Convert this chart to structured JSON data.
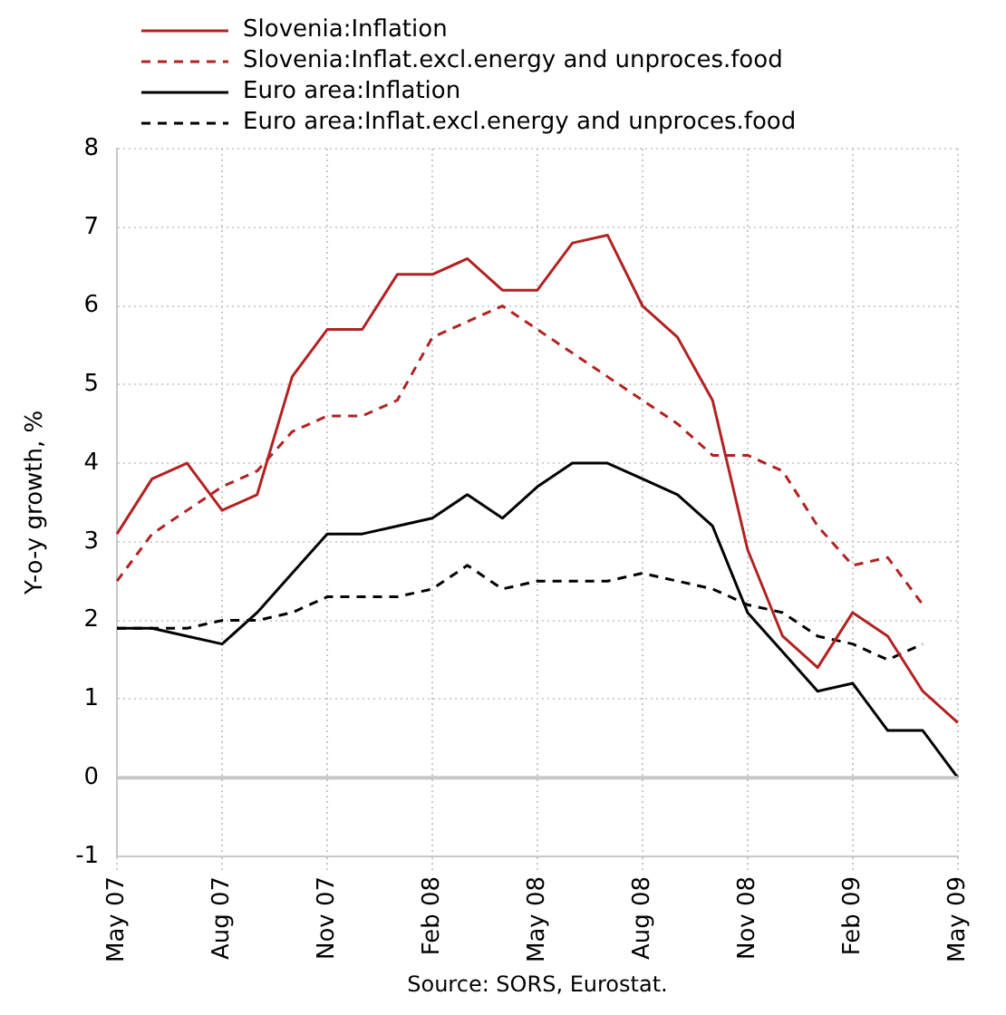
{
  "chart_data": {
    "type": "line",
    "ylabel": "Y-o-y growth, %",
    "categories": [
      "May 07",
      null,
      null,
      "Aug 07",
      null,
      null,
      "Nov 07",
      null,
      null,
      "Feb 08",
      null,
      null,
      "May 08",
      null,
      null,
      "Aug 08",
      null,
      null,
      "Nov 08",
      null,
      null,
      "Feb 09",
      null,
      null,
      "May 09"
    ],
    "series": [
      {
        "name": "Slovenia:Inflation",
        "color": "#b22222",
        "line_style": "solid",
        "values": [
          3.1,
          3.8,
          4.0,
          3.4,
          3.6,
          5.1,
          5.7,
          5.7,
          6.4,
          6.4,
          6.6,
          6.2,
          6.2,
          6.8,
          6.9,
          6.0,
          5.6,
          4.8,
          2.9,
          1.8,
          1.4,
          2.1,
          1.8,
          1.1,
          0.7
        ]
      },
      {
        "name": "Slovenia:Inflat.excl.energy and unproces.food",
        "color": "#b22222",
        "line_style": "dashed",
        "values": [
          2.5,
          3.1,
          3.4,
          3.7,
          3.9,
          4.4,
          4.6,
          4.6,
          4.8,
          5.6,
          5.8,
          6.0,
          5.7,
          5.4,
          5.1,
          4.8,
          4.5,
          4.1,
          4.1,
          3.9,
          3.2,
          2.7,
          2.8,
          2.2,
          null
        ]
      },
      {
        "name": "Euro area:Inflation",
        "color": "#000000",
        "line_style": "solid",
        "values": [
          1.9,
          1.9,
          1.8,
          1.7,
          2.1,
          2.6,
          3.1,
          3.1,
          3.2,
          3.3,
          3.6,
          3.3,
          3.7,
          4.0,
          4.0,
          3.8,
          3.6,
          3.2,
          2.1,
          1.6,
          1.1,
          1.2,
          0.6,
          0.6,
          0.0
        ]
      },
      {
        "name": "Euro area:Inflat.excl.energy and unproces.food",
        "color": "#000000",
        "line_style": "dashed",
        "values": [
          1.9,
          1.9,
          1.9,
          2.0,
          2.0,
          2.1,
          2.3,
          2.3,
          2.3,
          2.4,
          2.7,
          2.4,
          2.5,
          2.5,
          2.5,
          2.6,
          2.5,
          2.4,
          2.2,
          2.1,
          1.8,
          1.7,
          1.5,
          1.7,
          null
        ]
      }
    ],
    "ylim": [
      -1,
      8
    ],
    "yticks": [
      -1,
      0,
      1,
      2,
      3,
      4,
      5,
      6,
      7,
      8
    ],
    "ref_lines": [
      {
        "axis": "y",
        "value": 0,
        "color": "#c8c8c8"
      }
    ],
    "grid": true,
    "legend": "top left",
    "marker": "none",
    "annotations": [
      "Source: SORS, Eurostat."
    ]
  }
}
